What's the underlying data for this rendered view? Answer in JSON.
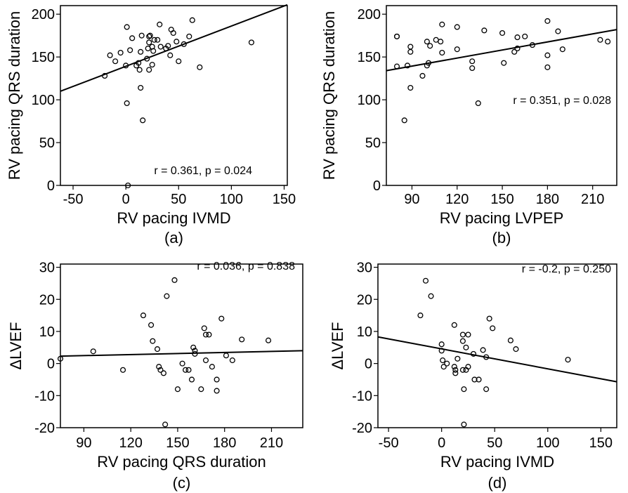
{
  "chart_data": [
    {
      "type": "scatter",
      "panel_label": "(a)",
      "xlabel": "RV pacing IVMD",
      "ylabel": "RV pacing QRS duration",
      "annotation": "r = 0.361, p = 0.024",
      "xlim": [
        -62,
        153
      ],
      "ylim": [
        0,
        210
      ],
      "xticks": [
        -50,
        0,
        50,
        100,
        150
      ],
      "yticks": [
        0,
        50,
        100,
        150,
        200
      ],
      "fit_line": {
        "x": [
          -62,
          153
        ],
        "y": [
          110,
          211
        ]
      },
      "points": [
        [
          -20,
          128
        ],
        [
          -15,
          152
        ],
        [
          -10,
          145
        ],
        [
          -5,
          155
        ],
        [
          0,
          140
        ],
        [
          1,
          185
        ],
        [
          1,
          96
        ],
        [
          2,
          0
        ],
        [
          4,
          158
        ],
        [
          6,
          172
        ],
        [
          10,
          140
        ],
        [
          12,
          143
        ],
        [
          13,
          135
        ],
        [
          14,
          156
        ],
        [
          15,
          175
        ],
        [
          14,
          114
        ],
        [
          16,
          76
        ],
        [
          20,
          148
        ],
        [
          21,
          160
        ],
        [
          22,
          167
        ],
        [
          22,
          174
        ],
        [
          22,
          135
        ],
        [
          23,
          175
        ],
        [
          25,
          141
        ],
        [
          25,
          162
        ],
        [
          26,
          157
        ],
        [
          27,
          170
        ],
        [
          30,
          170
        ],
        [
          32,
          188
        ],
        [
          33,
          162
        ],
        [
          38,
          160
        ],
        [
          40,
          163
        ],
        [
          42,
          152
        ],
        [
          43,
          182
        ],
        [
          45,
          178
        ],
        [
          48,
          168
        ],
        [
          50,
          145
        ],
        [
          55,
          165
        ],
        [
          60,
          174
        ],
        [
          63,
          193
        ],
        [
          70,
          138
        ],
        [
          119,
          167
        ]
      ]
    },
    {
      "type": "scatter",
      "panel_label": "(b)",
      "xlabel": "RV pacing LVPEP",
      "ylabel": "RV pacing QRS duration",
      "annotation": "r = 0.351, p = 0.028",
      "xlim": [
        73,
        226
      ],
      "ylim": [
        0,
        210
      ],
      "xticks": [
        90,
        120,
        150,
        180,
        210
      ],
      "yticks": [
        0,
        50,
        100,
        150,
        200
      ],
      "fit_line": {
        "x": [
          73,
          226
        ],
        "y": [
          134,
          182
        ]
      },
      "points": [
        [
          80,
          174
        ],
        [
          80,
          174
        ],
        [
          80,
          139
        ],
        [
          85,
          76
        ],
        [
          87,
          140
        ],
        [
          89,
          114
        ],
        [
          89,
          162
        ],
        [
          89,
          156
        ],
        [
          97,
          128
        ],
        [
          100,
          140
        ],
        [
          100,
          168
        ],
        [
          101,
          143
        ],
        [
          102,
          163
        ],
        [
          106,
          170
        ],
        [
          109,
          168
        ],
        [
          110,
          188
        ],
        [
          110,
          155
        ],
        [
          120,
          159
        ],
        [
          120,
          185
        ],
        [
          130,
          145
        ],
        [
          130,
          137
        ],
        [
          134,
          96
        ],
        [
          138,
          181
        ],
        [
          150,
          178
        ],
        [
          151,
          143
        ],
        [
          158,
          156
        ],
        [
          160,
          160
        ],
        [
          160,
          173
        ],
        [
          165,
          174
        ],
        [
          170,
          164
        ],
        [
          180,
          192
        ],
        [
          180,
          138
        ],
        [
          180,
          152
        ],
        [
          187,
          180
        ],
        [
          190,
          159
        ],
        [
          215,
          170
        ],
        [
          220,
          168
        ]
      ]
    },
    {
      "type": "scatter",
      "panel_label": "(c)",
      "xlabel": "RV pacing QRS duration",
      "ylabel": "ΔLVEF",
      "annotation": "r = 0.036, p = 0.838",
      "xlim": [
        75,
        230
      ],
      "ylim": [
        -20,
        31
      ],
      "xticks": [
        90,
        120,
        150,
        180,
        210
      ],
      "yticks": [
        -20,
        -10,
        0,
        10,
        20,
        30
      ],
      "fit_line": {
        "x": [
          75,
          230
        ],
        "y": [
          2.3,
          4.0
        ]
      },
      "points": [
        [
          75,
          1.5
        ],
        [
          96,
          3.8
        ],
        [
          115,
          -2
        ],
        [
          128,
          15
        ],
        [
          133,
          12
        ],
        [
          134,
          7
        ],
        [
          137,
          4.5
        ],
        [
          138,
          -1
        ],
        [
          139,
          -2
        ],
        [
          141,
          -3
        ],
        [
          142,
          -19
        ],
        [
          143,
          21
        ],
        [
          148,
          26
        ],
        [
          150,
          -8
        ],
        [
          153,
          0
        ],
        [
          155,
          -2
        ],
        [
          157,
          -2
        ],
        [
          159,
          -5
        ],
        [
          160,
          5
        ],
        [
          161,
          4
        ],
        [
          161,
          3
        ],
        [
          165,
          -8
        ],
        [
          167,
          11
        ],
        [
          168,
          1
        ],
        [
          168,
          9
        ],
        [
          170,
          9
        ],
        [
          172,
          -1
        ],
        [
          175,
          -8.5
        ],
        [
          175,
          -5
        ],
        [
          178,
          14
        ],
        [
          181,
          2.5
        ],
        [
          185,
          1
        ],
        [
          191,
          7.5
        ],
        [
          208,
          7.2
        ]
      ]
    },
    {
      "type": "scatter",
      "panel_label": "(d)",
      "xlabel": "RV pacing IVMD",
      "ylabel": "ΔLVEF",
      "annotation": "r = -0.2, p = 0.250",
      "xlim": [
        -60,
        165
      ],
      "ylim": [
        -20,
        31
      ],
      "xticks": [
        -50,
        0,
        50,
        100,
        150
      ],
      "yticks": [
        -20,
        -10,
        0,
        10,
        20,
        30
      ],
      "fit_line": {
        "x": [
          -60,
          165
        ],
        "y": [
          8.3,
          -5.7
        ]
      },
      "points": [
        [
          -15,
          25.8
        ],
        [
          -10,
          21
        ],
        [
          -20,
          15
        ],
        [
          0,
          6
        ],
        [
          1,
          1
        ],
        [
          2,
          -1
        ],
        [
          0,
          4
        ],
        [
          5,
          0
        ],
        [
          12,
          12
        ],
        [
          12,
          -1
        ],
        [
          13,
          -2
        ],
        [
          13,
          -3
        ],
        [
          15,
          1.5
        ],
        [
          20,
          9
        ],
        [
          20,
          7
        ],
        [
          20,
          -2
        ],
        [
          21,
          -19
        ],
        [
          21,
          -8
        ],
        [
          23,
          5
        ],
        [
          23,
          -2
        ],
        [
          25,
          9
        ],
        [
          25,
          -1
        ],
        [
          30,
          3
        ],
        [
          31,
          -5
        ],
        [
          35,
          -5
        ],
        [
          39,
          4.2
        ],
        [
          42,
          2
        ],
        [
          42,
          -8
        ],
        [
          45,
          14
        ],
        [
          48,
          11
        ],
        [
          65,
          7.2
        ],
        [
          70,
          4.5
        ],
        [
          119,
          1.2
        ]
      ]
    }
  ]
}
